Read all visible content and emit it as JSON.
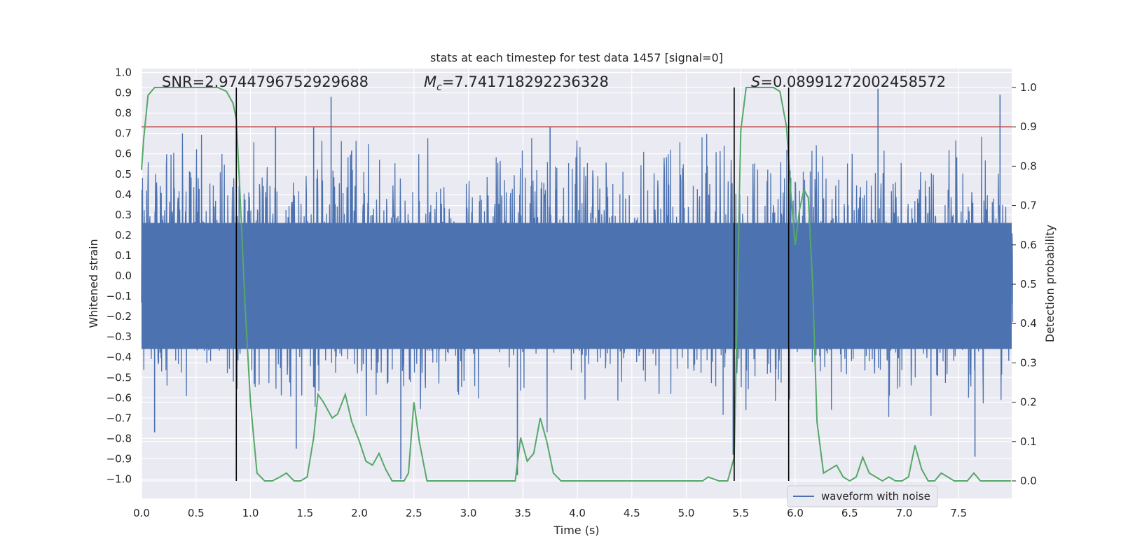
{
  "chart_data": {
    "type": "line",
    "title": "stats at each timestep for test data 1457 [signal=0]",
    "xlabel": "Time (s)",
    "ylabel": "Whitened strain",
    "y2label": "Detection probability",
    "xlim": [
      0.0,
      8.0
    ],
    "ylim": [
      -1.1,
      1.0
    ],
    "y2lim": [
      -0.05,
      1.04
    ],
    "x_ticks": [
      "0.0",
      "0.5",
      "1.0",
      "1.5",
      "2.0",
      "2.5",
      "3.0",
      "3.5",
      "4.0",
      "4.5",
      "5.0",
      "5.5",
      "6.0",
      "6.5",
      "7.0",
      "7.5"
    ],
    "y_ticks": [
      "1.0",
      "0.9",
      "0.8",
      "0.7",
      "0.6",
      "0.5",
      "0.4",
      "0.3",
      "0.2",
      "0.1",
      "0.0",
      "−0.1",
      "−0.2",
      "−0.3",
      "−0.4",
      "−0.5",
      "−0.6",
      "−0.7",
      "−0.8",
      "−0.9",
      "−1.0"
    ],
    "y2_ticks": [
      "1.0",
      "0.9",
      "0.8",
      "0.7",
      "0.6",
      "0.5",
      "0.4",
      "0.3",
      "0.2",
      "0.1",
      "0.0"
    ],
    "annotations": {
      "snr": "SNR=2.9744796752929688",
      "mc_symbol": "M",
      "mc_sub": "c",
      "mc_value": "=7.741718292236328",
      "s_symbol": "S",
      "s_value": "=0.08991272002458572"
    },
    "threshold": 0.9,
    "vertical_lines": [
      0.87,
      5.44,
      5.94
    ],
    "legend": {
      "label": "waveform with noise",
      "position": "lower-right"
    },
    "series": [
      {
        "name": "waveform with noise",
        "axis": "left",
        "kind": "noise",
        "amplitude_envelope": {
          "pos": 0.62,
          "neg": -0.58
        },
        "spikes": [
          {
            "x": 1.74,
            "y": 0.88
          },
          {
            "x": 6.76,
            "y": 0.92
          },
          {
            "x": 7.88,
            "y": 0.89
          },
          {
            "x": 2.38,
            "y": -1.0
          },
          {
            "x": 3.45,
            "y": -0.98
          },
          {
            "x": 5.43,
            "y": -0.88
          },
          {
            "x": 7.65,
            "y": -0.89
          },
          {
            "x": 1.42,
            "y": -0.85
          },
          {
            "x": 0.12,
            "y": -0.77
          },
          {
            "x": 3.75,
            "y": 0.73
          },
          {
            "x": 1.23,
            "y": 0.73
          },
          {
            "x": 1.58,
            "y": 0.73
          }
        ]
      },
      {
        "name": "detection probability",
        "axis": "right",
        "color": "#55a868",
        "x": [
          0.0,
          0.02,
          0.06,
          0.12,
          0.2,
          0.3,
          0.4,
          0.5,
          0.6,
          0.7,
          0.78,
          0.84,
          0.87,
          0.9,
          0.95,
          1.0,
          1.06,
          1.13,
          1.2,
          1.27,
          1.33,
          1.4,
          1.46,
          1.52,
          1.58,
          1.62,
          1.67,
          1.75,
          1.8,
          1.87,
          1.93,
          2.0,
          2.06,
          2.12,
          2.18,
          2.24,
          2.3,
          2.35,
          2.41,
          2.45,
          2.5,
          2.55,
          2.62,
          2.7,
          2.78,
          2.9,
          3.0,
          3.1,
          3.2,
          3.3,
          3.38,
          3.43,
          3.48,
          3.54,
          3.6,
          3.66,
          3.72,
          3.78,
          3.85,
          3.95,
          4.05,
          4.15,
          4.25,
          4.35,
          4.45,
          4.55,
          4.65,
          4.75,
          4.85,
          4.95,
          5.05,
          5.15,
          5.2,
          5.3,
          5.38,
          5.44,
          5.5,
          5.55,
          5.6,
          5.7,
          5.8,
          5.86,
          5.92,
          5.96,
          6.0,
          6.04,
          6.08,
          6.12,
          6.16,
          6.2,
          6.26,
          6.32,
          6.38,
          6.44,
          6.5,
          6.56,
          6.62,
          6.68,
          6.74,
          6.8,
          6.86,
          6.92,
          6.98,
          7.04,
          7.1,
          7.16,
          7.22,
          7.28,
          7.34,
          7.4,
          7.46,
          7.52,
          7.58,
          7.64,
          7.7,
          7.76,
          7.82,
          7.9,
          7.98
        ],
        "y": [
          0.79,
          0.87,
          0.98,
          1.0,
          1.0,
          1.0,
          1.0,
          1.0,
          1.0,
          1.0,
          0.99,
          0.96,
          0.92,
          0.75,
          0.45,
          0.2,
          0.02,
          0.0,
          0.0,
          0.01,
          0.02,
          0.0,
          0.0,
          0.01,
          0.11,
          0.22,
          0.2,
          0.16,
          0.17,
          0.22,
          0.15,
          0.1,
          0.05,
          0.04,
          0.07,
          0.03,
          0.0,
          0.0,
          0.0,
          0.02,
          0.2,
          0.1,
          0.0,
          0.0,
          0.0,
          0.0,
          0.0,
          0.0,
          0.0,
          0.0,
          0.0,
          0.0,
          0.11,
          0.05,
          0.07,
          0.16,
          0.1,
          0.02,
          0.0,
          0.0,
          0.0,
          0.0,
          0.0,
          0.0,
          0.0,
          0.0,
          0.0,
          0.0,
          0.0,
          0.0,
          0.0,
          0.0,
          0.01,
          0.0,
          0.0,
          0.06,
          0.89,
          1.0,
          1.0,
          1.0,
          1.0,
          0.99,
          0.9,
          0.73,
          0.6,
          0.69,
          0.74,
          0.72,
          0.5,
          0.15,
          0.02,
          0.03,
          0.04,
          0.01,
          0.0,
          0.01,
          0.06,
          0.02,
          0.01,
          0.0,
          0.01,
          0.0,
          0.0,
          0.01,
          0.09,
          0.03,
          0.0,
          0.0,
          0.02,
          0.01,
          0.0,
          0.0,
          0.0,
          0.02,
          0.0,
          0.0,
          0.0,
          0.0,
          0.0
        ]
      }
    ]
  }
}
